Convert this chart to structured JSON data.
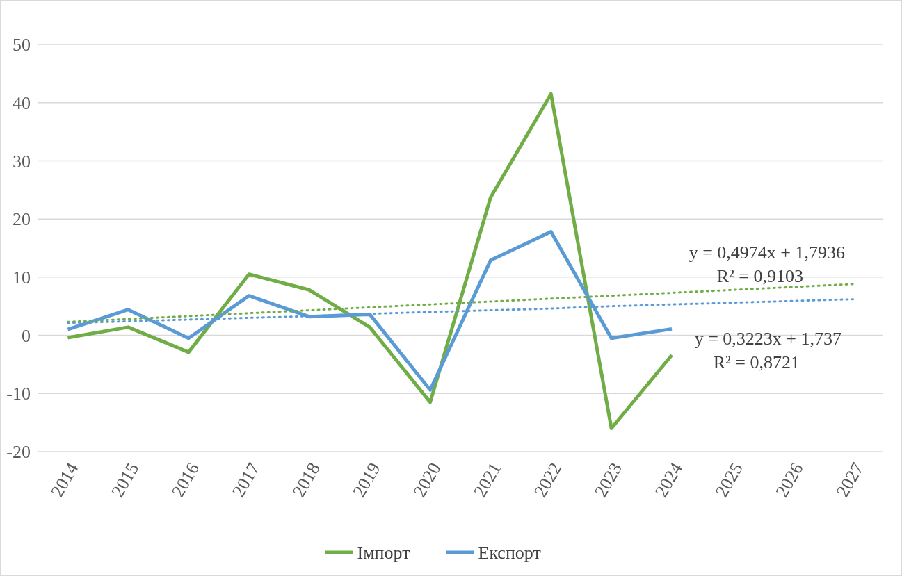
{
  "chart_data": {
    "type": "line",
    "categories": [
      "2014",
      "2015",
      "2016",
      "2017",
      "2018",
      "2019",
      "2020",
      "2021",
      "2022",
      "2023",
      "2024",
      "2025",
      "2026",
      "2027"
    ],
    "series": [
      {
        "name": "Імпорт",
        "color": "#70ad47",
        "values": [
          -0.4,
          1.4,
          -2.9,
          10.5,
          7.8,
          1.4,
          -11.5,
          23.7,
          41.5,
          -16,
          -3.4,
          null,
          null,
          null
        ]
      },
      {
        "name": "Експорт",
        "color": "#5b9bd5",
        "values": [
          1.0,
          4.4,
          -0.5,
          6.8,
          3.2,
          3.6,
          -9.4,
          12.9,
          17.8,
          -0.5,
          1.1,
          null,
          null,
          null
        ]
      },
      {
        "type": "line",
        "color": "#70ad47",
        "line_style": "dotted",
        "values": [
          2.3,
          2.8,
          3.3,
          3.8,
          4.3,
          4.8,
          5.3,
          5.8,
          6.3,
          6.8,
          7.3,
          7.8,
          8.3,
          8.8
        ]
      },
      {
        "type": "line",
        "color": "#5b9bd5",
        "line_style": "dotted",
        "values": [
          2.1,
          2.4,
          2.7,
          3.0,
          3.3,
          3.7,
          4.0,
          4.3,
          4.6,
          5.0,
          5.3,
          5.6,
          5.9,
          6.2
        ]
      }
    ],
    "ylim": [
      -20,
      50
    ],
    "yticks": [
      -20,
      -10,
      0,
      10,
      20,
      30,
      40,
      50
    ],
    "grid": "y",
    "legend": "bottom",
    "line_style": "solid",
    "marker": "none",
    "annotations": [
      "y = 0,4974x + 1,7936\nR² = 0,9103",
      "y = 0,3223x + 1,737\nR² = 0,8721"
    ]
  }
}
